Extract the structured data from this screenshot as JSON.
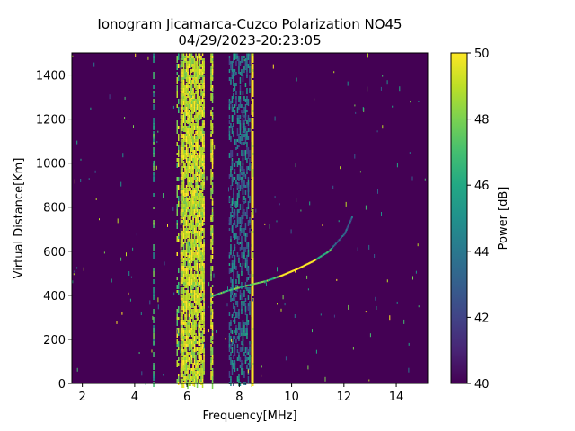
{
  "chart_data": {
    "type": "heatmap",
    "title": "Ionogram Jicamarca-Cuzco Polarization NO45",
    "subtitle": "04/29/2023-20:23:05",
    "xlabel": "Frequency[MHz]",
    "ylabel": "Virtual Distance[Km]",
    "xlim": [
      1.6,
      15.2
    ],
    "ylim": [
      0,
      1500
    ],
    "xticks": [
      "2",
      "4",
      "6",
      "8",
      "10",
      "12",
      "14"
    ],
    "xtick_values": [
      2,
      4,
      6,
      8,
      10,
      12,
      14
    ],
    "yticks": [
      "0",
      "200",
      "400",
      "600",
      "800",
      "1000",
      "1200",
      "1400"
    ],
    "ytick_values": [
      0,
      200,
      400,
      600,
      800,
      1000,
      1200,
      1400
    ],
    "colorbar": {
      "label": "Power [dB]",
      "colormap": "viridis",
      "range": [
        40,
        50
      ],
      "ticks": [
        "40",
        "42",
        "44",
        "46",
        "48",
        "50"
      ],
      "tick_values": [
        40,
        42,
        44,
        46,
        48,
        50
      ]
    },
    "background_power": 40,
    "interference_bands": [
      {
        "f_start": 5.6,
        "f_end": 5.7,
        "power": 50,
        "density": 0.35
      },
      {
        "f_start": 5.75,
        "f_end": 6.65,
        "power": 50,
        "density": 0.7
      },
      {
        "f_start": 6.9,
        "f_end": 7.0,
        "power": 50,
        "density": 0.6
      },
      {
        "f_start": 7.6,
        "f_end": 8.4,
        "power": 46,
        "density": 0.3
      },
      {
        "f_start": 8.45,
        "f_end": 8.55,
        "power": 50,
        "density": 0.9
      },
      {
        "f_start": 4.7,
        "f_end": 4.75,
        "power": 48,
        "density": 0.4
      }
    ],
    "echo_trace": [
      {
        "f": 6.9,
        "h": 395
      },
      {
        "f": 7.5,
        "h": 420
      },
      {
        "f": 8.3,
        "h": 445
      },
      {
        "f": 9.0,
        "h": 465
      },
      {
        "f": 9.6,
        "h": 490
      },
      {
        "f": 10.2,
        "h": 520
      },
      {
        "f": 10.8,
        "h": 555
      },
      {
        "f": 11.4,
        "h": 600
      },
      {
        "f": 12.0,
        "h": 680
      },
      {
        "f": 12.3,
        "h": 760
      }
    ]
  }
}
